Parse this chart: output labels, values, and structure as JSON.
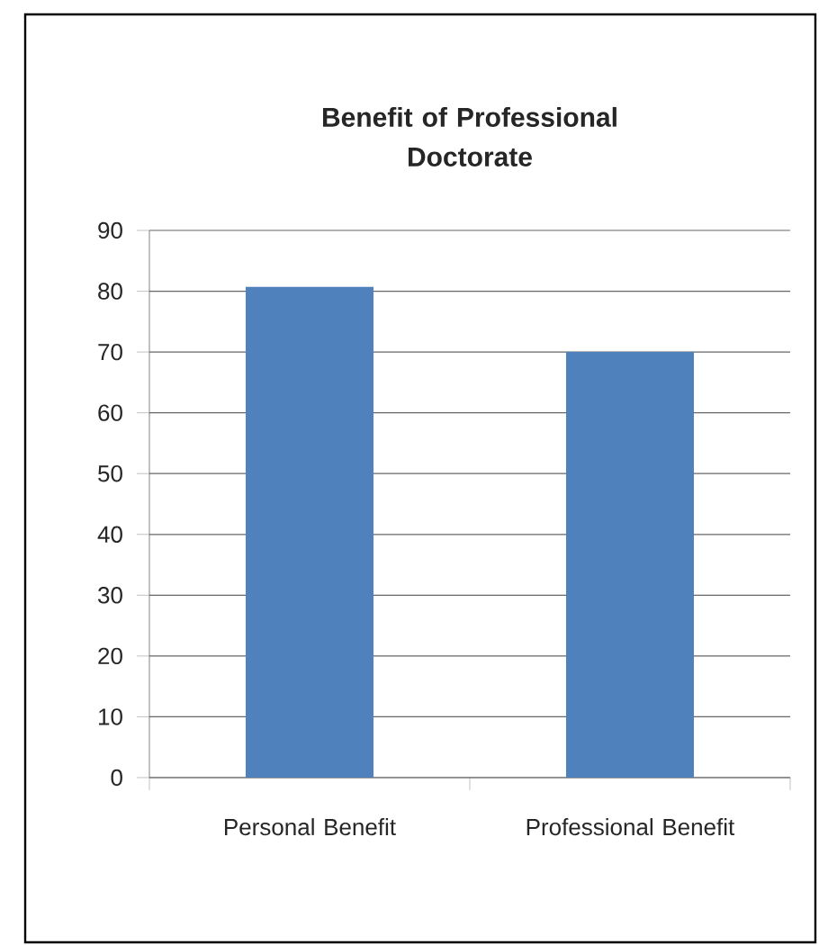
{
  "chart_data": {
    "type": "bar",
    "title": "Benefit of Professional Doctorate",
    "categories": [
      "Personal Benefit",
      "Professional Benefit"
    ],
    "values": [
      80.7,
      70
    ],
    "color": "#4f81bd",
    "ylim": [
      0,
      90
    ],
    "yticks": [
      0,
      10,
      20,
      30,
      40,
      50,
      60,
      70,
      80,
      90
    ],
    "grid": "y"
  }
}
